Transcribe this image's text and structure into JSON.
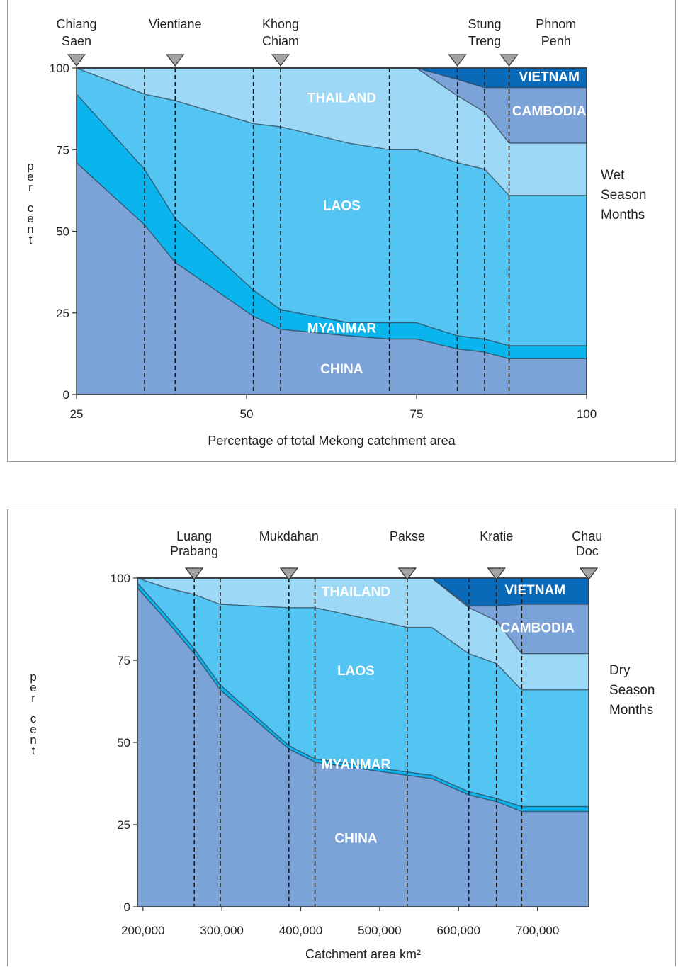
{
  "charts": [
    {
      "id": "wet",
      "chart_data": {
        "type": "area",
        "stacked": true,
        "x_label": "Percentage of total Mekong catchment area",
        "y_label": "per cent",
        "x_range": [
          25,
          100
        ],
        "y_range": [
          0,
          100
        ],
        "x_ticks": [
          "25",
          "50",
          "75",
          "100"
        ],
        "x_tick_values": [
          25,
          50,
          75,
          100
        ],
        "y_ticks": [
          "0",
          "25",
          "50",
          "75",
          "100"
        ],
        "side_label": [
          "Wet",
          "Season",
          "Months"
        ],
        "boundary_x": [
          25,
          35,
          39.5,
          51,
          55,
          65,
          71,
          75,
          81,
          85,
          88.6,
          100
        ],
        "bands": [
          {
            "name": "CHINA",
            "color": "#7ba3d8",
            "lower": [
              0,
              0,
              0,
              0,
              0,
              0,
              0,
              0,
              0,
              0,
              0,
              0
            ],
            "upper": [
              71,
              52,
              40.5,
              24,
              20,
              18,
              17,
              17,
              14,
              13,
              11,
              11
            ]
          },
          {
            "name": "MYANMAR",
            "color": "#0ab4ec",
            "lower": [
              71,
              52,
              40.5,
              24,
              20,
              18,
              17,
              17,
              14,
              13,
              11,
              11
            ],
            "upper": [
              92,
              69,
              54,
              32,
              26,
              22,
              22,
              22,
              18,
              17,
              15,
              15
            ]
          },
          {
            "name": "LAOS",
            "color": "#54c5f3",
            "lower": [
              92,
              69,
              54,
              32,
              26,
              22,
              22,
              22,
              18,
              17,
              15,
              15
            ],
            "upper": [
              100,
              92,
              90,
              83,
              82,
              77,
              75,
              75,
              71,
              69,
              61,
              61
            ]
          },
          {
            "name": "THAILAND",
            "color": "#9dd9f7",
            "lower": [
              100,
              92,
              90,
              83,
              82,
              77,
              75,
              75,
              71,
              69,
              61,
              61
            ],
            "upper": [
              100,
              100,
              100,
              100,
              100,
              100,
              100,
              100,
              91.5,
              86.5,
              77,
              77
            ]
          },
          {
            "name": "CAMBODIA",
            "color": "#7ba3d8",
            "lower": [
              100,
              100,
              100,
              100,
              100,
              100,
              100,
              100,
              91.5,
              86.5,
              77,
              77
            ],
            "upper": [
              100,
              100,
              100,
              100,
              100,
              100,
              100,
              100,
              96.5,
              94,
              94,
              94
            ]
          },
          {
            "name": "VIETNAM",
            "color": "#0b6ab8",
            "lower": [
              100,
              100,
              100,
              100,
              100,
              100,
              100,
              100,
              96.5,
              94,
              94,
              94
            ],
            "upper": [
              100,
              100,
              100,
              100,
              100,
              100,
              100,
              100,
              100,
              100,
              100,
              100
            ]
          }
        ],
        "area_labels": [
          {
            "text": "THAILAND",
            "x": 64,
            "y": 91
          },
          {
            "text": "LAOS",
            "x": 64,
            "y": 58
          },
          {
            "text": "MYANMAR",
            "x": 64,
            "y": 20.5
          },
          {
            "text": "CHINA",
            "x": 64,
            "y": 8
          },
          {
            "text": "VIETNAM",
            "x": 94.5,
            "y": 97.5
          },
          {
            "text": "CAMBODIA",
            "x": 94.5,
            "y": 87
          }
        ],
        "dashed_lines": [
          35,
          39.5,
          51,
          55,
          71,
          81,
          85,
          88.6
        ],
        "markers": [
          25,
          39.5,
          55,
          81,
          88.6
        ],
        "stations": [
          {
            "name": [
              "Chiang",
              "Saen"
            ],
            "x": 25
          },
          {
            "name": [
              "Vientiane"
            ],
            "x": 39.5
          },
          {
            "name": [
              "Khong",
              "Chiam"
            ],
            "x": 55
          },
          {
            "name": [
              "Stung",
              "Treng"
            ],
            "x": 85
          },
          {
            "name": [
              "Phnom",
              "Penh"
            ],
            "x": 95.5
          }
        ]
      }
    },
    {
      "id": "dry",
      "chart_data": {
        "type": "area",
        "stacked": true,
        "x_label": "Catchment area km²",
        "y_label": "per cent",
        "x_range": [
          193000,
          765000
        ],
        "y_range": [
          0,
          100
        ],
        "x_ticks": [
          "200,000",
          "300,000",
          "400,000",
          "500,000",
          "600,000",
          "700,000"
        ],
        "x_tick_values": [
          200000,
          300000,
          400000,
          500000,
          600000,
          700000
        ],
        "y_ticks": [
          "0",
          "25",
          "50",
          "75",
          "100"
        ],
        "side_label": [
          "Dry",
          "Season",
          "Months"
        ],
        "boundary_x": [
          193000,
          230000,
          265000,
          298000,
          385000,
          418000,
          535000,
          566000,
          613000,
          648000,
          680000,
          765000
        ],
        "bands": [
          {
            "name": "CHINA",
            "color": "#7ba3d8",
            "lower": [
              0,
              0,
              0,
              0,
              0,
              0,
              0,
              0,
              0,
              0,
              0,
              0
            ],
            "upper": [
              97,
              87,
              77,
              66,
              48,
              44,
              40,
              39,
              34,
              32,
              29,
              29
            ]
          },
          {
            "name": "MYANMAR",
            "color": "#0ab4ec",
            "lower": [
              97,
              87,
              77,
              66,
              48,
              44,
              40,
              39,
              34,
              32,
              29,
              29
            ],
            "upper": [
              98.5,
              88.5,
              78.5,
              67.5,
              49,
              45,
              41,
              40,
              35,
              33,
              30.5,
              30.5
            ]
          },
          {
            "name": "LAOS",
            "color": "#54c5f3",
            "lower": [
              98.5,
              88.5,
              78.5,
              67.5,
              49,
              45,
              41,
              40,
              35,
              33,
              30.5,
              30.5
            ],
            "upper": [
              100,
              97,
              95,
              92,
              91,
              91,
              85,
              85,
              77,
              74,
              66,
              66
            ]
          },
          {
            "name": "THAILAND",
            "color": "#9dd9f7",
            "lower": [
              100,
              97,
              95,
              92,
              91,
              91,
              85,
              85,
              77,
              74,
              66,
              66
            ],
            "upper": [
              100,
              100,
              100,
              100,
              100,
              100,
              100,
              100,
              91,
              87,
              77,
              77
            ]
          },
          {
            "name": "CAMBODIA",
            "color": "#7ba3d8",
            "lower": [
              100,
              100,
              100,
              100,
              100,
              100,
              100,
              100,
              91,
              87,
              77,
              77
            ],
            "upper": [
              100,
              100,
              100,
              100,
              100,
              100,
              100,
              100,
              91.5,
              91.5,
              92,
              92
            ]
          },
          {
            "name": "VIETNAM",
            "color": "#0b6ab8",
            "lower": [
              100,
              100,
              100,
              100,
              100,
              100,
              100,
              100,
              91.5,
              91.5,
              92,
              92
            ],
            "upper": [
              100,
              100,
              100,
              100,
              100,
              100,
              100,
              100,
              100,
              100,
              100,
              100
            ]
          }
        ],
        "area_labels": [
          {
            "text": "THAILAND",
            "x": 470000,
            "y": 96
          },
          {
            "text": "LAOS",
            "x": 470000,
            "y": 72
          },
          {
            "text": "MYANMAR",
            "x": 470000,
            "y": 43.5
          },
          {
            "text": "CHINA",
            "x": 470000,
            "y": 21
          },
          {
            "text": "VIETNAM",
            "x": 697000,
            "y": 96.5
          },
          {
            "text": "CAMBODIA",
            "x": 700000,
            "y": 85
          }
        ],
        "dashed_lines": [
          265000,
          298000,
          385000,
          418000,
          535000,
          613000,
          648000,
          680000
        ],
        "markers": [
          265000,
          385000,
          535000,
          648000,
          765000
        ],
        "stations": [
          {
            "name": [
              "Luang",
              "Prabang"
            ],
            "x": 265000
          },
          {
            "name": [
              "Mukdahan"
            ],
            "x": 385000
          },
          {
            "name": [
              "Pakse"
            ],
            "x": 535000
          },
          {
            "name": [
              "Kratie"
            ],
            "x": 648000
          },
          {
            "name": [
              "Chau",
              "Doc"
            ],
            "x": 763000
          }
        ]
      }
    }
  ]
}
